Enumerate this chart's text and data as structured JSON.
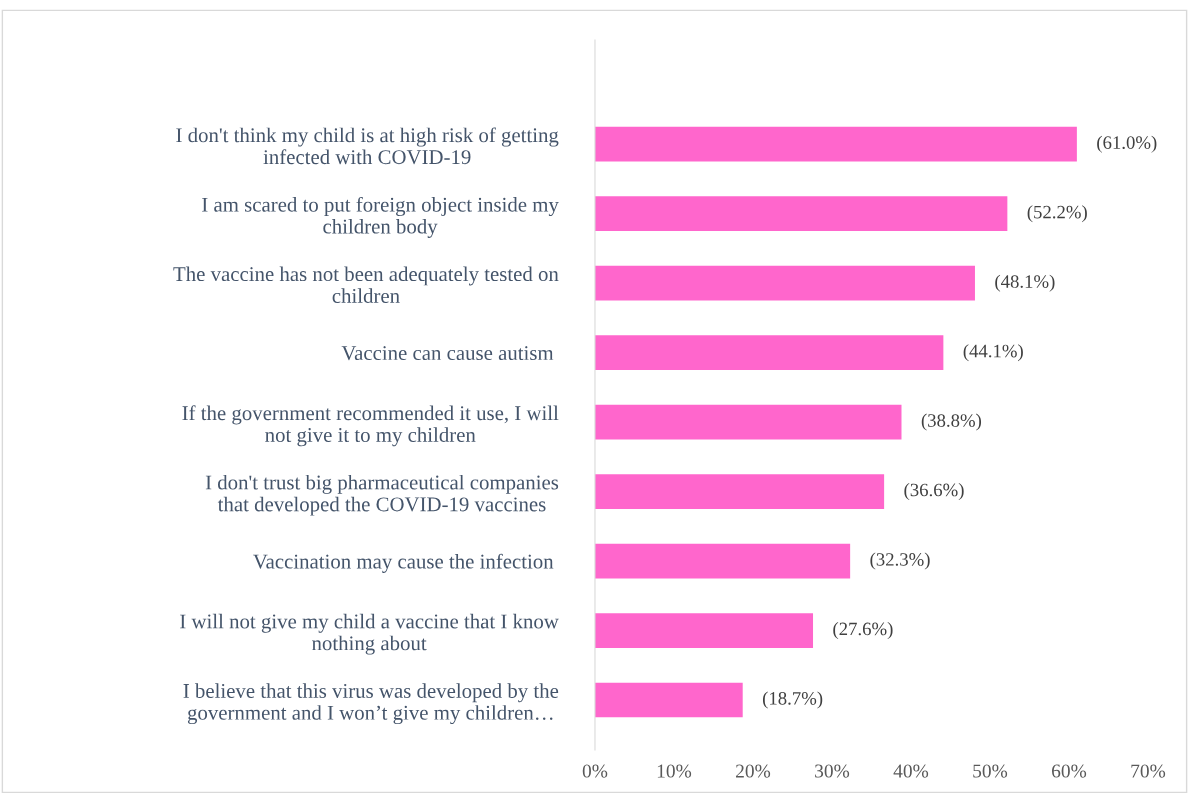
{
  "chart_data": {
    "type": "bar",
    "orientation": "horizontal",
    "categories": [
      "I don't think my child is at high risk of getting\ninfected with COVID-19",
      "I am scared to put foreign object inside my\nchildren body",
      "The vaccine has not been adequately tested on\nchildren",
      "Vaccine can cause autism ",
      "If the government recommended it use, I will\nnot give it to my children",
      "I don't trust big pharmaceutical companies\nthat developed the COVID-19 vaccines",
      "Vaccination may cause the infection ",
      "I will not give my child a vaccine that I know\nnothing about",
      "I believe that this virus was developed by the\ngovernment and I won’t give my children…"
    ],
    "values": [
      61.0,
      52.2,
      48.1,
      44.1,
      38.8,
      36.6,
      32.3,
      27.6,
      18.7
    ],
    "value_labels": [
      "(61.0%)",
      "(52.2%)",
      "(48.1%)",
      "(44.1%)",
      "(38.8%)",
      "(36.6%)",
      "(32.3%)",
      "(27.6%)",
      "(18.7%)"
    ],
    "color": "#ff66cc",
    "xlim": [
      0,
      70
    ],
    "xticks": [
      {
        "value": 0,
        "label": "0%"
      },
      {
        "value": 10,
        "label": "10%"
      },
      {
        "value": 20,
        "label": "20%"
      },
      {
        "value": 30,
        "label": "30%"
      },
      {
        "value": 40,
        "label": "40%"
      },
      {
        "value": 50,
        "label": "50%"
      },
      {
        "value": 60,
        "label": "60%"
      },
      {
        "value": 70,
        "label": "70%"
      }
    ],
    "grid": false
  }
}
